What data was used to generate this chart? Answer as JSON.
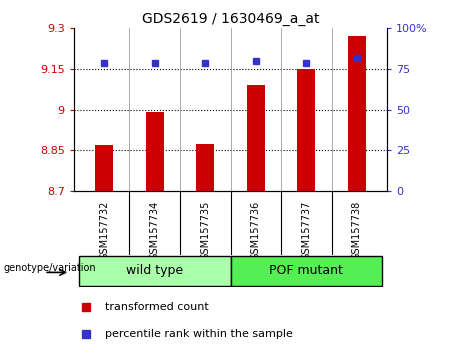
{
  "title": "GDS2619 / 1630469_a_at",
  "samples": [
    "GSM157732",
    "GSM157734",
    "GSM157735",
    "GSM157736",
    "GSM157737",
    "GSM157738"
  ],
  "bar_values": [
    8.87,
    8.99,
    8.875,
    9.09,
    9.15,
    9.27
  ],
  "percentile_values": [
    79,
    79,
    79,
    80,
    79,
    82
  ],
  "ylim_left": [
    8.7,
    9.3
  ],
  "ylim_right": [
    0,
    100
  ],
  "yticks_left": [
    8.7,
    8.85,
    9.0,
    9.15,
    9.3
  ],
  "yticks_right": [
    0,
    25,
    50,
    75,
    100
  ],
  "ytick_labels_left": [
    "8.7",
    "8.85",
    "9",
    "9.15",
    "9.3"
  ],
  "ytick_labels_right": [
    "0",
    "25",
    "50",
    "75",
    "100%"
  ],
  "hlines": [
    8.85,
    9.0,
    9.15
  ],
  "bar_color": "#cc0000",
  "percentile_color": "#3333cc",
  "bar_bottom": 8.7,
  "bar_width": 0.35,
  "groups": [
    {
      "label": "wild type",
      "start": 0,
      "end": 3
    },
    {
      "label": "POF mutant",
      "start": 3,
      "end": 6
    }
  ],
  "group_label": "genotype/variation",
  "tick_color_left": "#cc0000",
  "tick_color_right": "#3333cc",
  "bg_color_plot": "#ffffff",
  "bg_color_sample": "#cccccc",
  "bg_color_group_wt": "#aaffaa",
  "bg_color_group_pof": "#55ee55",
  "legend_items": [
    {
      "color": "#cc0000",
      "label": "transformed count"
    },
    {
      "color": "#3333cc",
      "label": "percentile rank within the sample"
    }
  ]
}
